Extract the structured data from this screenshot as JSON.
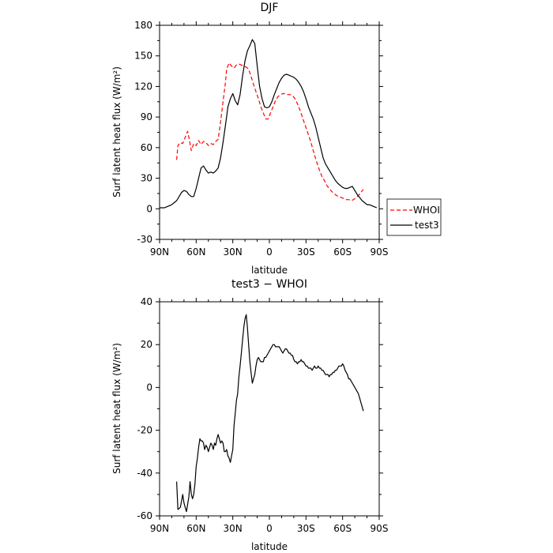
{
  "chart_data": [
    {
      "type": "line",
      "title": "DJF",
      "xlabel": "latitude",
      "ylabel": "Surf latent heat flux (W/m²)",
      "xlim": [
        90,
        -90
      ],
      "ylim": [
        -30,
        180
      ],
      "xticks": [
        90,
        60,
        30,
        0,
        -30,
        -60,
        -90
      ],
      "xtick_labels": [
        "90N",
        "60N",
        "30N",
        "0",
        "30S",
        "60S",
        "90S"
      ],
      "yticks": [
        -30,
        0,
        30,
        60,
        90,
        120,
        150,
        180
      ],
      "ytick_labels": [
        "-30",
        "0",
        "30",
        "60",
        "90",
        "120",
        "150",
        "180"
      ],
      "legend_position": "outside-right",
      "series": [
        {
          "name": "WHOI",
          "color": "#ff0000",
          "dash": "dashed",
          "x": [
            76,
            75,
            73,
            71,
            69,
            67,
            66,
            64,
            62,
            60,
            58,
            56,
            54,
            52,
            50,
            48,
            46,
            44,
            42,
            40,
            38,
            36,
            35,
            33,
            31,
            29,
            27,
            25,
            23,
            21,
            19,
            17,
            15,
            13,
            11,
            9,
            7,
            5,
            3,
            1,
            -1,
            -3,
            -5,
            -7,
            -9,
            -11,
            -13,
            -15,
            -17,
            -19,
            -21,
            -23,
            -25,
            -27,
            -29,
            -31,
            -33,
            -35,
            -37,
            -39,
            -41,
            -43,
            -45,
            -47,
            -49,
            -51,
            -53,
            -55,
            -57,
            -59,
            -61,
            -63,
            -65,
            -67,
            -69,
            -71,
            -73,
            -75,
            -77
          ],
          "y": [
            48,
            62,
            65,
            64,
            70,
            76,
            70,
            57,
            64,
            62,
            67,
            63,
            66,
            65,
            62,
            64,
            63,
            66,
            68,
            85,
            105,
            124,
            137,
            143,
            140,
            138,
            141,
            142,
            141,
            140,
            139,
            137,
            130,
            122,
            115,
            108,
            100,
            94,
            88,
            88,
            94,
            100,
            106,
            110,
            112,
            113,
            113,
            112,
            112,
            111,
            108,
            103,
            97,
            90,
            83,
            76,
            69,
            61,
            53,
            45,
            38,
            32,
            28,
            23,
            20,
            17,
            15,
            13,
            12,
            11,
            10,
            9,
            9,
            8,
            9,
            11,
            13,
            16,
            19
          ]
        },
        {
          "name": "test3",
          "color": "#000000",
          "dash": "solid",
          "x": [
            90,
            88,
            86,
            84,
            82,
            80,
            78,
            76,
            74,
            72,
            70,
            68,
            66,
            64,
            62,
            60,
            58,
            56,
            54,
            52,
            50,
            48,
            46,
            44,
            42,
            40,
            38,
            36,
            34,
            32,
            30,
            28,
            26,
            24,
            22,
            20,
            18,
            16,
            14,
            12,
            10,
            8,
            6,
            4,
            2,
            0,
            -2,
            -4,
            -6,
            -8,
            -10,
            -12,
            -14,
            -16,
            -18,
            -20,
            -22,
            -24,
            -26,
            -28,
            -30,
            -32,
            -34,
            -36,
            -38,
            -40,
            -42,
            -44,
            -46,
            -48,
            -50,
            -52,
            -54,
            -56,
            -58,
            -60,
            -62,
            -64,
            -66,
            -68,
            -70,
            -72,
            -74,
            -76,
            -78,
            -80,
            -82,
            -84,
            -86,
            -88
          ],
          "y": [
            1,
            1,
            1,
            2,
            3,
            4,
            6,
            8,
            12,
            16,
            18,
            17,
            14,
            12,
            12,
            20,
            30,
            40,
            42,
            38,
            35,
            36,
            35,
            37,
            40,
            50,
            65,
            82,
            100,
            108,
            113,
            106,
            102,
            112,
            130,
            145,
            155,
            160,
            166,
            162,
            140,
            120,
            108,
            100,
            99,
            100,
            105,
            112,
            118,
            124,
            128,
            131,
            132,
            131,
            130,
            129,
            127,
            124,
            120,
            115,
            108,
            100,
            94,
            88,
            80,
            70,
            60,
            50,
            44,
            40,
            36,
            32,
            28,
            25,
            23,
            21,
            20,
            20,
            21,
            22,
            18,
            14,
            11,
            8,
            6,
            4,
            4,
            3,
            2,
            1
          ]
        }
      ]
    },
    {
      "type": "line",
      "title": "test3 − WHOI",
      "xlabel": "latitude",
      "ylabel": "Surf latent heat flux (W/m²)",
      "xlim": [
        90,
        -90
      ],
      "ylim": [
        -60,
        40
      ],
      "xticks": [
        90,
        60,
        30,
        0,
        -30,
        -60,
        -90
      ],
      "xtick_labels": [
        "90N",
        "60N",
        "30N",
        "0",
        "30S",
        "60S",
        "90S"
      ],
      "yticks": [
        -60,
        -40,
        -20,
        0,
        20,
        40
      ],
      "ytick_labels": [
        "-60",
        "-40",
        "-20",
        "0",
        "20",
        "40"
      ],
      "series": [
        {
          "color": "#000000",
          "dash": "solid",
          "x": [
            76,
            75,
            73,
            71,
            70,
            69,
            68,
            66,
            65,
            64,
            63,
            62,
            61,
            60,
            59,
            58,
            57,
            56,
            55,
            54,
            53,
            52,
            51,
            50,
            49,
            48,
            47,
            46,
            45,
            44,
            43,
            42,
            41,
            40,
            39,
            38,
            37,
            36,
            35,
            34,
            33,
            32,
            31,
            30,
            29,
            28,
            27,
            26,
            25,
            24,
            23,
            22,
            21,
            20,
            19,
            18,
            17,
            16,
            15,
            14,
            13,
            12,
            11,
            10,
            9,
            8,
            7,
            6,
            5,
            4,
            3,
            2,
            1,
            0,
            -1,
            -2,
            -3,
            -4,
            -5,
            -6,
            -7,
            -8,
            -9,
            -10,
            -11,
            -12,
            -13,
            -14,
            -15,
            -16,
            -17,
            -18,
            -19,
            -20,
            -21,
            -22,
            -23,
            -24,
            -25,
            -26,
            -27,
            -28,
            -29,
            -30,
            -31,
            -32,
            -33,
            -34,
            -35,
            -36,
            -37,
            -38,
            -39,
            -40,
            -41,
            -42,
            -43,
            -44,
            -45,
            -46,
            -47,
            -48,
            -49,
            -50,
            -51,
            -52,
            -53,
            -54,
            -55,
            -56,
            -57,
            -58,
            -59,
            -60,
            -61,
            -62,
            -63,
            -64,
            -65,
            -66,
            -67,
            -68,
            -69,
            -70,
            -71,
            -72,
            -73,
            -74,
            -75,
            -76,
            -77
          ],
          "y": [
            -44,
            -57,
            -56,
            -50,
            -54,
            -56,
            -58,
            -51,
            -44,
            -50,
            -52,
            -50,
            -45,
            -37,
            -33,
            -28,
            -24,
            -25,
            -25,
            -26,
            -29,
            -27,
            -28,
            -30,
            -28,
            -26,
            -27,
            -29,
            -26,
            -27,
            -24,
            -22,
            -24,
            -26,
            -25,
            -26,
            -30,
            -30,
            -29,
            -32,
            -33,
            -35,
            -32,
            -29,
            -18,
            -12,
            -6,
            -3,
            5,
            10,
            16,
            22,
            28,
            32,
            34,
            28,
            20,
            12,
            7,
            2,
            4,
            6,
            10,
            13,
            14,
            13,
            12,
            12,
            12,
            14,
            14,
            15,
            16,
            17,
            18,
            19,
            20,
            20,
            19,
            19,
            19,
            19,
            18,
            17,
            16,
            17,
            18,
            18,
            17,
            16,
            16,
            15,
            15,
            13,
            12,
            12,
            11,
            12,
            12,
            13,
            12,
            12,
            11,
            10,
            10,
            9,
            9,
            9,
            8,
            9,
            10,
            9,
            9,
            10,
            9,
            9,
            8,
            8,
            7,
            6,
            6,
            6,
            5,
            6,
            6,
            7,
            7,
            8,
            8,
            9,
            10,
            10,
            10,
            11,
            10,
            8,
            7,
            6,
            4,
            4,
            3,
            2,
            1,
            0,
            -1,
            -2,
            -3,
            -5,
            -7,
            -9,
            -11
          ]
        }
      ]
    }
  ]
}
